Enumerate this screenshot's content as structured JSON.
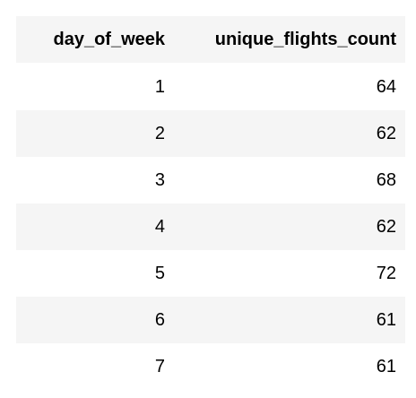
{
  "table": {
    "columns": [
      "day_of_week",
      "unique_flights_count"
    ],
    "rows": [
      [
        "1",
        "64"
      ],
      [
        "2",
        "62"
      ],
      [
        "3",
        "68"
      ],
      [
        "4",
        "62"
      ],
      [
        "5",
        "72"
      ],
      [
        "6",
        "61"
      ],
      [
        "7",
        "61"
      ]
    ]
  }
}
